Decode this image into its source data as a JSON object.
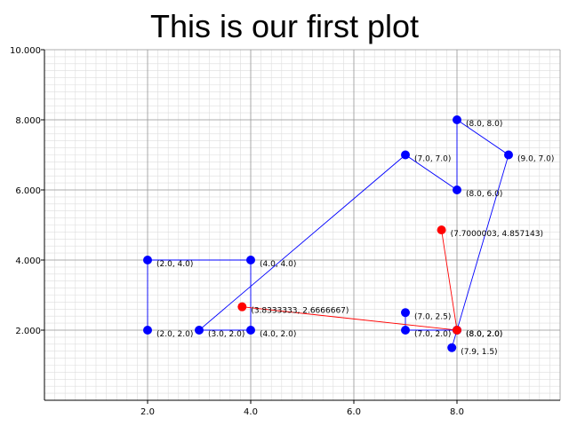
{
  "chart_data": {
    "type": "line",
    "title": "This is our first plot",
    "xlabel": "",
    "ylabel": "",
    "xlim": [
      0,
      10
    ],
    "ylim": [
      0,
      10
    ],
    "x_ticks": [
      2.0,
      4.0,
      6.0,
      8.0
    ],
    "x_tick_labels": [
      "2.0",
      "4.0",
      "6.0",
      "8.0"
    ],
    "y_ticks": [
      2.0,
      4.0,
      6.0,
      8.0,
      10.0
    ],
    "y_tick_labels": [
      "2.000",
      "4.000",
      "6.000",
      "8.000",
      "10.000"
    ],
    "grid": true,
    "minor_grid": true,
    "series": [
      {
        "color": "#0000ff",
        "marker_color": "#0000ff",
        "x": [
          2,
          2,
          4,
          4,
          3,
          7,
          8,
          8,
          9,
          8,
          7.9,
          8,
          7,
          7
        ],
        "y": [
          2,
          4,
          4,
          2,
          2,
          7,
          6,
          8,
          7,
          2,
          1.5,
          2,
          2,
          2.5
        ],
        "point_labels": [
          "(2.0, 2.0)",
          "(2.0, 4.0)",
          "(4.0, 4.0)",
          "(4.0, 2.0)",
          "(3.0, 2.0)",
          "(7.0, 7.0)",
          "(8.0, 6.0)",
          "(8.0, 8.0)",
          "(9.0, 7.0)",
          "(8.0, 2.0)",
          "(7.9, 1.5)",
          "(8.0, 2.0)",
          "(7.0, 2.0)",
          "(7.0, 2.5)"
        ]
      },
      {
        "color": "#ff0000",
        "marker_color": "#ff0000",
        "x": [
          3.8333333,
          8,
          7.7000003
        ],
        "y": [
          2.6666667,
          2,
          4.857143
        ],
        "point_labels": [
          "(3.8333333, 2.6666667)",
          "",
          "(7.7000003, 4.857143)"
        ]
      }
    ]
  }
}
